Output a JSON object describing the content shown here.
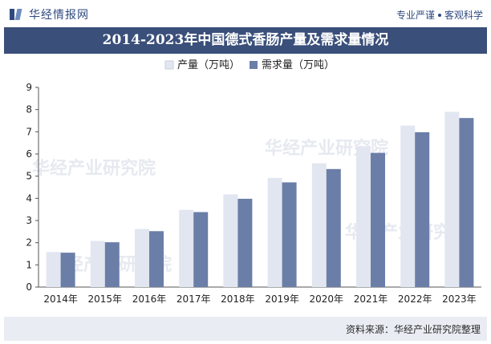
{
  "header": {
    "logo_text": "华经情报网",
    "slogan_left": "专业严谨",
    "slogan_right": "客观科学"
  },
  "title": "2014-2023年中国德式香肠产量及需求量情况",
  "footer": {
    "source": "资料来源：华经产业研究院整理"
  },
  "watermark": "华经产业研究院",
  "colors": {
    "production": "#e2e6f0",
    "demand": "#6b7ea8",
    "title_band": "#3a4f7a"
  },
  "chart_data": {
    "type": "bar",
    "categories": [
      "2014年",
      "2015年",
      "2016年",
      "2017年",
      "2018年",
      "2019年",
      "2020年",
      "2021年",
      "2022年",
      "2023年"
    ],
    "series": [
      {
        "name": "产量（万吨）",
        "values": [
          1.58,
          2.08,
          2.62,
          3.48,
          4.18,
          4.92,
          5.58,
          6.35,
          7.28,
          7.9
        ]
      },
      {
        "name": "需求量（万吨）",
        "values": [
          1.55,
          2.02,
          2.52,
          3.38,
          3.98,
          4.72,
          5.32,
          6.05,
          6.98,
          7.62
        ]
      }
    ],
    "title": "2014-2023年中国德式香肠产量及需求量情况",
    "xlabel": "",
    "ylabel": "",
    "ylim": [
      0,
      9
    ],
    "yticks": [
      0,
      1,
      2,
      3,
      4,
      5,
      6,
      7,
      8,
      9
    ],
    "legend": "top-center",
    "grid": false
  }
}
